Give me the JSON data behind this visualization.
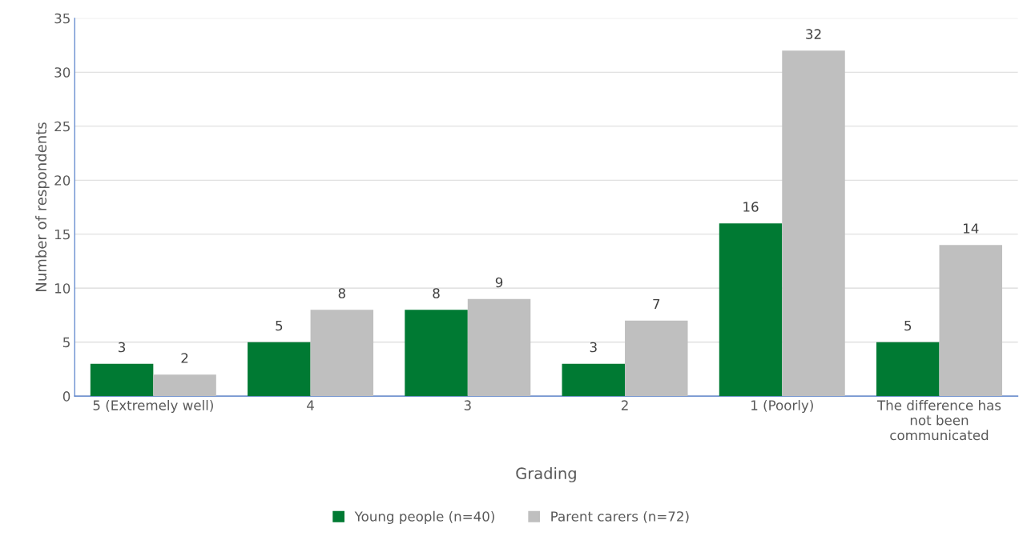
{
  "chart_data": {
    "type": "bar",
    "xlabel": "Grading",
    "ylabel": "Number of respondents",
    "categories": [
      "5 (Extremely well)",
      "4",
      "3",
      "2",
      "1 (Poorly)",
      "The difference has not been communicated"
    ],
    "series": [
      {
        "name": "Young people (n=40)",
        "color": "#007a33",
        "values": [
          3,
          5,
          8,
          3,
          16,
          5
        ]
      },
      {
        "name": "Parent carers (n=72)",
        "color": "#bfbfbf",
        "values": [
          2,
          8,
          9,
          7,
          32,
          14
        ]
      }
    ],
    "ylim": [
      0,
      35
    ],
    "yticks": [
      0,
      5,
      10,
      15,
      20,
      25,
      30,
      35
    ],
    "grid": "y",
    "legend": "bottom",
    "data_labels": true
  }
}
